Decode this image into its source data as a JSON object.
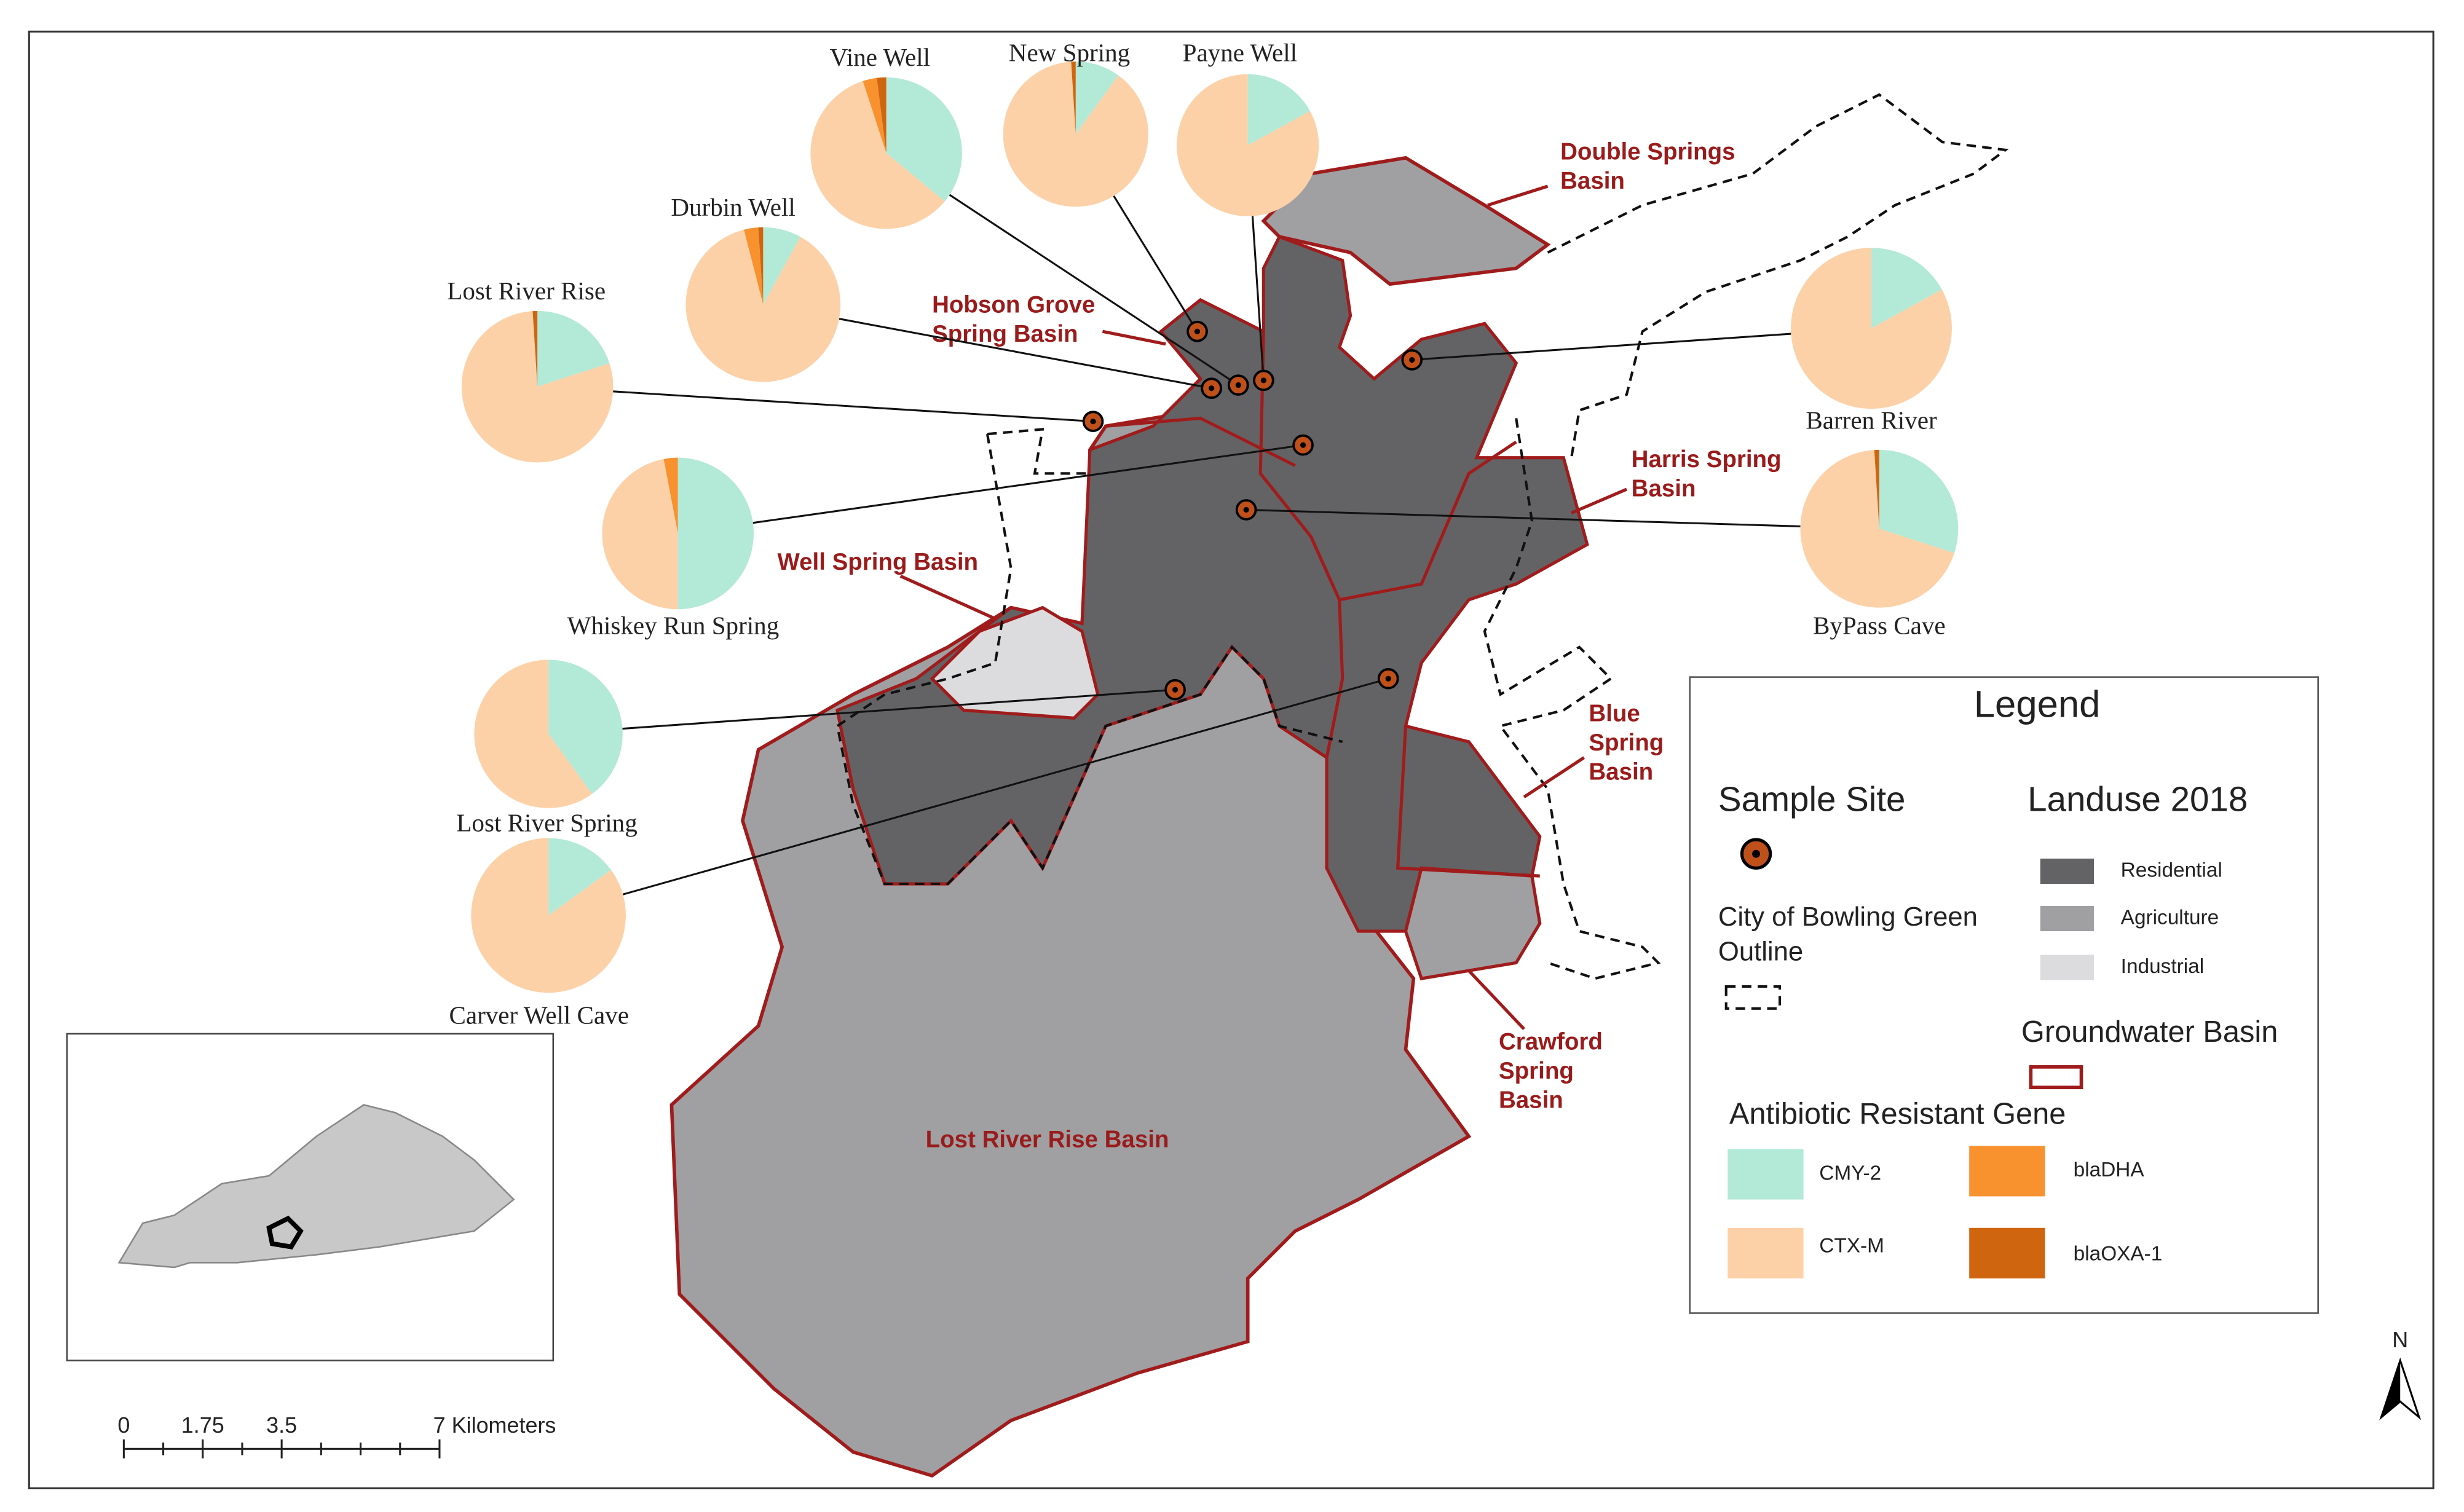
{
  "sites": [
    {
      "name": "Vine Well",
      "values": [
        36,
        59,
        3,
        2
      ]
    },
    {
      "name": "New Spring",
      "values": [
        10,
        89,
        0,
        1
      ]
    },
    {
      "name": "Payne Well",
      "values": [
        17,
        83,
        0,
        0
      ]
    },
    {
      "name": "Durbin Well",
      "values": [
        8,
        88,
        3,
        1
      ]
    },
    {
      "name": "Lost River Rise",
      "values": [
        20,
        79,
        0,
        1
      ]
    },
    {
      "name": "Whiskey Run Spring",
      "values": [
        50,
        47,
        3,
        0
      ]
    },
    {
      "name": "Lost River Spring",
      "values": [
        40,
        60,
        0,
        0
      ]
    },
    {
      "name": "Carver Well Cave",
      "values": [
        15,
        85,
        0,
        0
      ]
    },
    {
      "name": "Barren River",
      "values": [
        17,
        83,
        0,
        0
      ]
    },
    {
      "name": "ByPass Cave",
      "values": [
        30,
        69,
        0,
        1
      ]
    }
  ],
  "genes": [
    {
      "name": "CMY-2",
      "color": "#b3e9d7"
    },
    {
      "name": "CTX-M",
      "color": "#fdd1a8"
    },
    {
      "name": "blaDHA",
      "color": "#f7922f"
    },
    {
      "name": "blaOXA-1",
      "color": "#d0650f"
    }
  ],
  "basins": [
    {
      "lines": [
        "Double Springs",
        "Basin"
      ]
    },
    {
      "lines": [
        "Hobson Grove",
        "Spring Basin"
      ]
    },
    {
      "lines": [
        "Harris Spring",
        "Basin"
      ]
    },
    {
      "lines": [
        "Well Spring Basin"
      ]
    },
    {
      "lines": [
        "Blue",
        "Spring",
        "Basin"
      ]
    },
    {
      "lines": [
        "Crawford",
        "Spring",
        "Basin"
      ]
    },
    {
      "lines": [
        "Lost River Rise Basin"
      ]
    }
  ],
  "legend": {
    "title": "Legend",
    "sample_site": "Sample Site",
    "landuse_title": "Landuse 2018",
    "landuse": [
      {
        "name": "Residential",
        "color": "#636366"
      },
      {
        "name": "Agriculture",
        "color": "#a0a0a3"
      },
      {
        "name": "Industrial",
        "color": "#dcdcde"
      }
    ],
    "city_outline": [
      "City of Bowling Green",
      "Outline"
    ],
    "groundwater_basin": "Groundwater Basin",
    "gene_title": "Antibiotic Resistant Gene"
  },
  "scale_bar": [
    "0",
    "1.75",
    "3.5",
    "7 Kilometers"
  ],
  "north": "N"
}
